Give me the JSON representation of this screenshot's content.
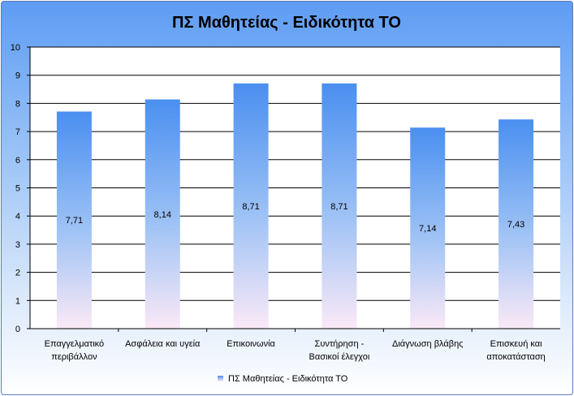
{
  "chart_data": {
    "type": "bar",
    "title": "ΠΣ Μαθητείας  - Ειδικότητα ΤΟ",
    "categories": [
      [
        "Επαγγελματικό",
        "περιβάλλον"
      ],
      [
        "Ασφάλεια και υγεία"
      ],
      [
        "Επικοινωνία"
      ],
      [
        "Συντήρηση -",
        "Βασικοί έλεγχοι"
      ],
      [
        "Διάγνωση βλάβης"
      ],
      [
        "Επισκευή και",
        "αποκατάσταση"
      ]
    ],
    "series": [
      {
        "name": "ΠΣ Μαθητείας  - Ειδικότητα ΤΟ",
        "values": [
          7.71,
          8.14,
          8.71,
          8.71,
          7.14,
          7.43
        ],
        "labels": [
          "7,71",
          "8,14",
          "8,71",
          "8,71",
          "7,14",
          "7,43"
        ]
      }
    ],
    "ylim": [
      0,
      10
    ],
    "yticks": [
      0,
      1,
      2,
      3,
      4,
      5,
      6,
      7,
      8,
      9,
      10
    ],
    "grid": true,
    "legend": "bottom",
    "colors": {
      "bar_top": "#4a8ff0",
      "bar_bottom": "#fbe9f7",
      "gridline": "#000000",
      "plot_bg": "#ffffff"
    }
  }
}
